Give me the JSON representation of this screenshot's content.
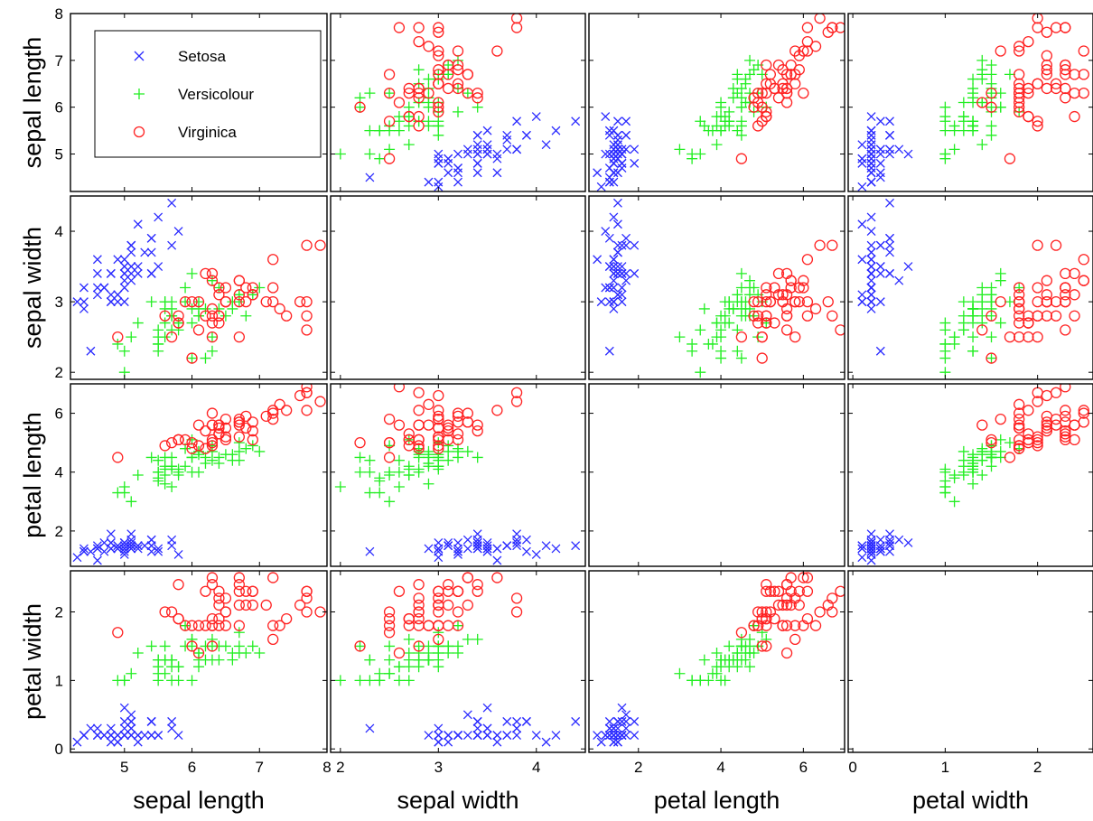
{
  "chart_data": {
    "type": "scatter",
    "title": "",
    "variables": [
      "sepal length",
      "sepal width",
      "petal length",
      "petal width"
    ],
    "ranges": {
      "sepal length": [
        4.2,
        8.0
      ],
      "sepal width": [
        1.9,
        4.5
      ],
      "petal length": [
        0.8,
        7.0
      ],
      "petal width": [
        -0.05,
        2.6
      ]
    },
    "ticks": {
      "sepal length": [
        5,
        6,
        7,
        8
      ],
      "sepal width": [
        2,
        3,
        4
      ],
      "petal length": [
        2,
        4,
        6
      ],
      "petal width": [
        0,
        1,
        2
      ]
    },
    "left_ticks": {
      "sepal length": [
        5,
        6,
        7,
        8
      ],
      "sepal width": [
        2,
        3,
        4
      ],
      "petal length": [
        2,
        4,
        6
      ],
      "petal width": [
        0,
        1,
        2
      ]
    },
    "grid": false,
    "diagonal_empty": true,
    "legend_position": "top-left of first panel",
    "columns_order": [
      "sepal length",
      "sepal width",
      "petal length",
      "petal width"
    ],
    "series": [
      {
        "name": "Setosa",
        "marker": "x",
        "color": "#2b2bff",
        "points": [
          [
            5.1,
            3.5,
            1.4,
            0.2
          ],
          [
            4.9,
            3.0,
            1.4,
            0.2
          ],
          [
            4.7,
            3.2,
            1.3,
            0.2
          ],
          [
            4.6,
            3.1,
            1.5,
            0.2
          ],
          [
            5.0,
            3.6,
            1.4,
            0.2
          ],
          [
            5.4,
            3.9,
            1.7,
            0.4
          ],
          [
            4.6,
            3.4,
            1.4,
            0.3
          ],
          [
            5.0,
            3.4,
            1.5,
            0.2
          ],
          [
            4.4,
            2.9,
            1.4,
            0.2
          ],
          [
            4.9,
            3.1,
            1.5,
            0.1
          ],
          [
            5.4,
            3.7,
            1.5,
            0.2
          ],
          [
            4.8,
            3.4,
            1.6,
            0.2
          ],
          [
            4.8,
            3.0,
            1.4,
            0.1
          ],
          [
            4.3,
            3.0,
            1.1,
            0.1
          ],
          [
            5.8,
            4.0,
            1.2,
            0.2
          ],
          [
            5.7,
            4.4,
            1.5,
            0.4
          ],
          [
            5.4,
            3.9,
            1.3,
            0.4
          ],
          [
            5.1,
            3.5,
            1.4,
            0.3
          ],
          [
            5.7,
            3.8,
            1.7,
            0.3
          ],
          [
            5.1,
            3.8,
            1.5,
            0.3
          ],
          [
            5.4,
            3.4,
            1.7,
            0.2
          ],
          [
            5.1,
            3.7,
            1.5,
            0.4
          ],
          [
            4.6,
            3.6,
            1.0,
            0.2
          ],
          [
            5.1,
            3.3,
            1.7,
            0.5
          ],
          [
            4.8,
            3.4,
            1.9,
            0.2
          ],
          [
            5.0,
            3.0,
            1.6,
            0.2
          ],
          [
            5.0,
            3.4,
            1.6,
            0.4
          ],
          [
            5.2,
            3.5,
            1.5,
            0.2
          ],
          [
            5.2,
            3.4,
            1.4,
            0.2
          ],
          [
            4.7,
            3.2,
            1.6,
            0.2
          ],
          [
            4.8,
            3.1,
            1.6,
            0.2
          ],
          [
            5.4,
            3.4,
            1.5,
            0.4
          ],
          [
            5.2,
            4.1,
            1.5,
            0.1
          ],
          [
            5.5,
            4.2,
            1.4,
            0.2
          ],
          [
            4.9,
            3.1,
            1.5,
            0.2
          ],
          [
            5.0,
            3.2,
            1.2,
            0.2
          ],
          [
            5.5,
            3.5,
            1.3,
            0.2
          ],
          [
            4.9,
            3.6,
            1.4,
            0.1
          ],
          [
            4.4,
            3.0,
            1.3,
            0.2
          ],
          [
            5.1,
            3.4,
            1.5,
            0.2
          ],
          [
            5.0,
            3.5,
            1.3,
            0.3
          ],
          [
            4.5,
            2.3,
            1.3,
            0.3
          ],
          [
            4.4,
            3.2,
            1.3,
            0.2
          ],
          [
            5.0,
            3.5,
            1.6,
            0.6
          ],
          [
            5.1,
            3.8,
            1.9,
            0.4
          ],
          [
            4.8,
            3.0,
            1.4,
            0.3
          ],
          [
            5.1,
            3.8,
            1.6,
            0.2
          ],
          [
            4.6,
            3.2,
            1.4,
            0.2
          ],
          [
            5.3,
            3.7,
            1.5,
            0.2
          ],
          [
            5.0,
            3.3,
            1.4,
            0.2
          ]
        ]
      },
      {
        "name": "Versicolour",
        "marker": "+",
        "color": "#22ee22",
        "points": [
          [
            7.0,
            3.2,
            4.7,
            1.4
          ],
          [
            6.4,
            3.2,
            4.5,
            1.5
          ],
          [
            6.9,
            3.1,
            4.9,
            1.5
          ],
          [
            5.5,
            2.3,
            4.0,
            1.3
          ],
          [
            6.5,
            2.8,
            4.6,
            1.5
          ],
          [
            5.7,
            2.8,
            4.5,
            1.3
          ],
          [
            6.3,
            3.3,
            4.7,
            1.6
          ],
          [
            4.9,
            2.4,
            3.3,
            1.0
          ],
          [
            6.6,
            2.9,
            4.6,
            1.3
          ],
          [
            5.2,
            2.7,
            3.9,
            1.4
          ],
          [
            5.0,
            2.0,
            3.5,
            1.0
          ],
          [
            5.9,
            3.0,
            4.2,
            1.5
          ],
          [
            6.0,
            2.2,
            4.0,
            1.0
          ],
          [
            6.1,
            2.9,
            4.7,
            1.4
          ],
          [
            5.6,
            2.9,
            3.6,
            1.3
          ],
          [
            6.7,
            3.1,
            4.4,
            1.4
          ],
          [
            5.6,
            3.0,
            4.5,
            1.5
          ],
          [
            5.8,
            2.7,
            4.1,
            1.0
          ],
          [
            6.2,
            2.2,
            4.5,
            1.5
          ],
          [
            5.6,
            2.5,
            3.9,
            1.1
          ],
          [
            5.9,
            3.2,
            4.8,
            1.8
          ],
          [
            6.1,
            2.8,
            4.0,
            1.3
          ],
          [
            6.3,
            2.5,
            4.9,
            1.5
          ],
          [
            6.1,
            2.8,
            4.7,
            1.2
          ],
          [
            6.4,
            2.9,
            4.3,
            1.3
          ],
          [
            6.6,
            3.0,
            4.4,
            1.4
          ],
          [
            6.8,
            2.8,
            4.8,
            1.4
          ],
          [
            6.7,
            3.0,
            5.0,
            1.7
          ],
          [
            6.0,
            2.9,
            4.5,
            1.5
          ],
          [
            5.7,
            2.6,
            3.5,
            1.0
          ],
          [
            5.5,
            2.4,
            3.8,
            1.1
          ],
          [
            5.5,
            2.4,
            3.7,
            1.0
          ],
          [
            5.8,
            2.7,
            3.9,
            1.2
          ],
          [
            6.0,
            2.7,
            5.1,
            1.6
          ],
          [
            5.4,
            3.0,
            4.5,
            1.5
          ],
          [
            6.0,
            3.4,
            4.5,
            1.6
          ],
          [
            6.7,
            3.1,
            4.7,
            1.5
          ],
          [
            6.3,
            2.3,
            4.4,
            1.3
          ],
          [
            5.6,
            3.0,
            4.1,
            1.3
          ],
          [
            5.5,
            2.5,
            4.0,
            1.3
          ],
          [
            5.5,
            2.6,
            4.4,
            1.2
          ],
          [
            6.1,
            3.0,
            4.6,
            1.4
          ],
          [
            5.8,
            2.6,
            4.0,
            1.2
          ],
          [
            5.0,
            2.3,
            3.3,
            1.0
          ],
          [
            5.6,
            2.7,
            4.2,
            1.3
          ],
          [
            5.7,
            3.0,
            4.2,
            1.2
          ],
          [
            5.7,
            2.9,
            4.2,
            1.3
          ],
          [
            6.2,
            2.9,
            4.3,
            1.3
          ],
          [
            5.1,
            2.5,
            3.0,
            1.1
          ],
          [
            5.7,
            2.8,
            4.1,
            1.3
          ]
        ]
      },
      {
        "name": "Virginica",
        "marker": "o",
        "color": "#ff2222",
        "points": [
          [
            6.3,
            3.3,
            6.0,
            2.5
          ],
          [
            5.8,
            2.7,
            5.1,
            1.9
          ],
          [
            7.1,
            3.0,
            5.9,
            2.1
          ],
          [
            6.3,
            2.9,
            5.6,
            1.8
          ],
          [
            6.5,
            3.0,
            5.8,
            2.2
          ],
          [
            7.6,
            3.0,
            6.6,
            2.1
          ],
          [
            4.9,
            2.5,
            4.5,
            1.7
          ],
          [
            7.3,
            2.9,
            6.3,
            1.8
          ],
          [
            6.7,
            2.5,
            5.8,
            1.8
          ],
          [
            7.2,
            3.6,
            6.1,
            2.5
          ],
          [
            6.5,
            3.2,
            5.1,
            2.0
          ],
          [
            6.4,
            2.7,
            5.3,
            1.9
          ],
          [
            6.8,
            3.0,
            5.5,
            2.1
          ],
          [
            5.7,
            2.5,
            5.0,
            2.0
          ],
          [
            5.8,
            2.8,
            5.1,
            2.4
          ],
          [
            6.4,
            3.2,
            5.3,
            2.3
          ],
          [
            6.5,
            3.0,
            5.5,
            1.8
          ],
          [
            7.7,
            3.8,
            6.7,
            2.2
          ],
          [
            7.7,
            2.6,
            6.9,
            2.3
          ],
          [
            6.0,
            2.2,
            5.0,
            1.5
          ],
          [
            6.9,
            3.2,
            5.7,
            2.3
          ],
          [
            5.6,
            2.8,
            4.9,
            2.0
          ],
          [
            7.7,
            2.8,
            6.7,
            2.0
          ],
          [
            6.3,
            2.7,
            4.9,
            1.8
          ],
          [
            6.7,
            3.3,
            5.7,
            2.1
          ],
          [
            7.2,
            3.2,
            6.0,
            1.8
          ],
          [
            6.2,
            2.8,
            4.8,
            1.8
          ],
          [
            6.1,
            3.0,
            4.9,
            1.8
          ],
          [
            6.4,
            2.8,
            5.6,
            2.1
          ],
          [
            7.2,
            3.0,
            5.8,
            1.6
          ],
          [
            7.4,
            2.8,
            6.1,
            1.9
          ],
          [
            7.9,
            3.8,
            6.4,
            2.0
          ],
          [
            6.4,
            2.8,
            5.6,
            2.2
          ],
          [
            6.3,
            2.8,
            5.1,
            1.5
          ],
          [
            6.1,
            2.6,
            5.6,
            1.4
          ],
          [
            7.7,
            3.0,
            6.1,
            2.3
          ],
          [
            6.3,
            3.4,
            5.6,
            2.4
          ],
          [
            6.4,
            3.1,
            5.5,
            1.8
          ],
          [
            6.0,
            3.0,
            4.8,
            1.8
          ],
          [
            6.9,
            3.1,
            5.4,
            2.1
          ],
          [
            6.7,
            3.1,
            5.6,
            2.4
          ],
          [
            6.9,
            3.1,
            5.1,
            2.3
          ],
          [
            5.8,
            2.7,
            5.1,
            1.9
          ],
          [
            6.8,
            3.2,
            5.9,
            2.3
          ],
          [
            6.7,
            3.3,
            5.7,
            2.5
          ],
          [
            6.7,
            3.0,
            5.2,
            2.3
          ],
          [
            6.3,
            2.5,
            5.0,
            1.9
          ],
          [
            6.5,
            3.0,
            5.2,
            2.0
          ],
          [
            6.2,
            3.4,
            5.4,
            2.3
          ],
          [
            5.9,
            3.0,
            5.1,
            1.8
          ]
        ]
      }
    ]
  }
}
